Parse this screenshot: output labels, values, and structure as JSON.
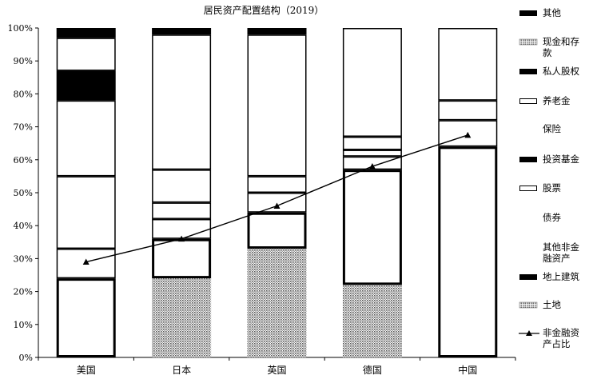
{
  "chart_data": {
    "type": "bar",
    "stacked": true,
    "title": "居民资产配置结构（2019）",
    "categories": [
      "美国",
      "日本",
      "英国",
      "德国",
      "中国"
    ],
    "ylim": [
      0,
      100
    ],
    "yticks": [
      "0%",
      "10%",
      "20%",
      "30%",
      "40%",
      "50%",
      "60%",
      "70%",
      "80%",
      "90%",
      "100%"
    ],
    "series": [
      {
        "name": "土地",
        "values": [
          0,
          24,
          33,
          22,
          0
        ]
      },
      {
        "name": "地上建筑",
        "values": [
          24,
          12,
          11,
          35,
          64
        ]
      },
      {
        "name": "其他非金融资产",
        "values": [
          0,
          0,
          0,
          0,
          0
        ]
      },
      {
        "name": "债券",
        "values": [
          9,
          6,
          6,
          4,
          8
        ]
      },
      {
        "name": "股票",
        "values": [
          22,
          5,
          5,
          2,
          0
        ]
      },
      {
        "name": "投资基金",
        "values": [
          0,
          0,
          0,
          0,
          0
        ]
      },
      {
        "name": "保险",
        "values": [
          0,
          0,
          0,
          0,
          0
        ]
      },
      {
        "name": "养老金",
        "values": [
          23,
          10,
          0,
          4,
          6
        ]
      },
      {
        "name": "私人股权",
        "values": [
          9,
          0,
          0,
          0,
          0
        ]
      },
      {
        "name": "现金和存款",
        "values": [
          10,
          41,
          43,
          33,
          22
        ]
      },
      {
        "name": "其他",
        "values": [
          3,
          2,
          2,
          0,
          0
        ]
      }
    ],
    "line_series": {
      "name": "非金融资产占比",
      "values": [
        29,
        36,
        46,
        58,
        67.5
      ]
    },
    "legend": {
      "position": "right",
      "items": [
        {
          "label": "其他",
          "swatch": "solid"
        },
        {
          "label": "现金和存款",
          "swatch": "dots"
        },
        {
          "label": "私人股权",
          "swatch": "solid"
        },
        {
          "label": "养老金",
          "swatch": "outline"
        },
        {
          "label": "保险",
          "swatch": "none"
        },
        {
          "label": "投资基金",
          "swatch": "solid"
        },
        {
          "label": "股票",
          "swatch": "outline"
        },
        {
          "label": "债券",
          "swatch": "none"
        },
        {
          "label": "其他非金融资产",
          "swatch": "none"
        },
        {
          "label": "地上建筑",
          "swatch": "solid"
        },
        {
          "label": "土地",
          "swatch": "dots"
        },
        {
          "label": "非金融资产占比",
          "swatch": "line"
        }
      ]
    }
  }
}
